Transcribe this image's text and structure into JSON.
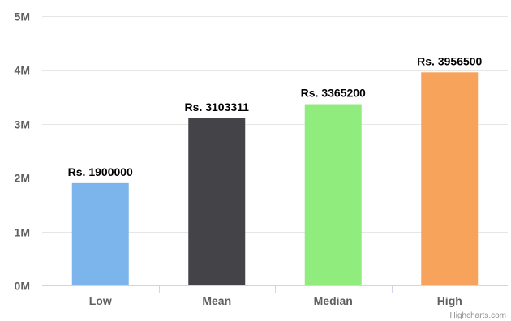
{
  "chart_data": {
    "type": "bar",
    "title": "",
    "xlabel": "",
    "ylabel": "",
    "categories": [
      "Low",
      "Mean",
      "Median",
      "High"
    ],
    "values": [
      1900000,
      3103311,
      3365200,
      3956500
    ],
    "data_labels": [
      "Rs. 1900000",
      "Rs. 3103311",
      "Rs. 3365200",
      "Rs. 3956500"
    ],
    "colors": [
      "#7cb5ec",
      "#434348",
      "#90ed7d",
      "#f7a35c"
    ],
    "ylim": [
      0,
      5000000
    ],
    "yticks": [
      {
        "value": 0,
        "label": "0M"
      },
      {
        "value": 1000000,
        "label": "1M"
      },
      {
        "value": 2000000,
        "label": "2M"
      },
      {
        "value": 3000000,
        "label": "3M"
      },
      {
        "value": 4000000,
        "label": "4M"
      },
      {
        "value": 5000000,
        "label": "5M"
      }
    ],
    "grid": true,
    "legend": "none"
  },
  "credits": "Highcharts.com"
}
